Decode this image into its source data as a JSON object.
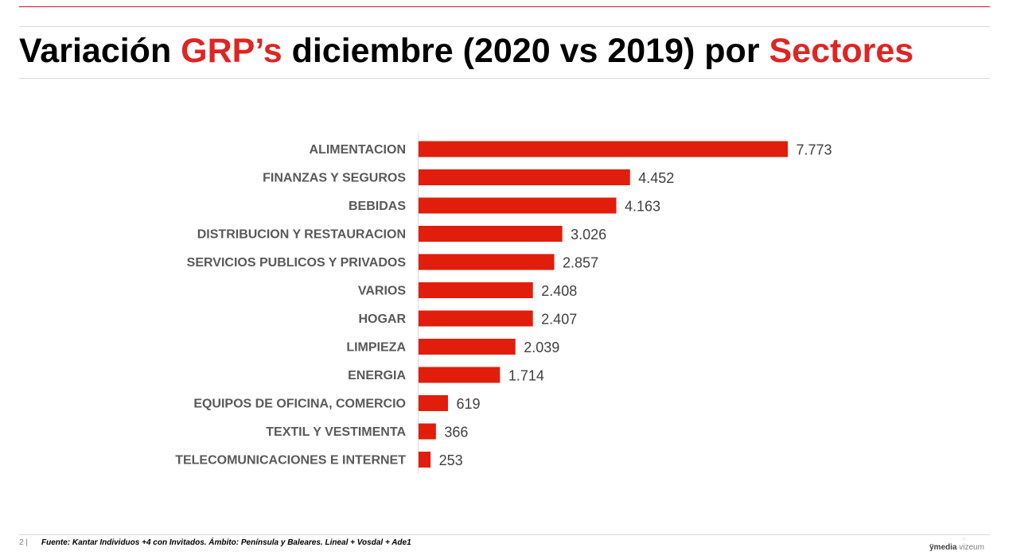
{
  "title": {
    "part1": "Variación ",
    "part2": "GRP’s",
    "part3": " diciembre (2020 vs 2019) por ",
    "part4": "Sectores"
  },
  "colors": {
    "accent": "#e02424",
    "bar": "#e01e0b",
    "text": "#595959"
  },
  "chart_data": {
    "type": "bar",
    "orientation": "horizontal",
    "categories": [
      "ALIMENTACION",
      "FINANZAS Y SEGUROS",
      "BEBIDAS",
      "DISTRIBUCION Y RESTAURACION",
      "SERVICIOS PUBLICOS Y PRIVADOS",
      "VARIOS",
      "HOGAR",
      "LIMPIEZA",
      "ENERGIA",
      "EQUIPOS DE OFICINA, COMERCIO",
      "TEXTIL Y VESTIMENTA",
      "TELECOMUNICACIONES E INTERNET"
    ],
    "values": [
      7773,
      4452,
      4163,
      3026,
      2857,
      2408,
      2407,
      2039,
      1714,
      619,
      366,
      253
    ],
    "value_labels": [
      "7.773",
      "4.452",
      "4.163",
      "3.026",
      "2.857",
      "2.408",
      "2.407",
      "2.039",
      "1.714",
      "619",
      "366",
      "253"
    ],
    "xlim": [
      0,
      7773
    ],
    "grid": false,
    "legend": "none"
  },
  "footer": {
    "page": "2 |",
    "source": "Fuente: Kantar Individuos +4 con Invitados. Ámbito: Península y Baleares. Lineal + Vosdal + Ade1",
    "logo_part1": "ÿmedia",
    "logo_part2": " vizeum",
    "logo_mark": "⁘"
  }
}
